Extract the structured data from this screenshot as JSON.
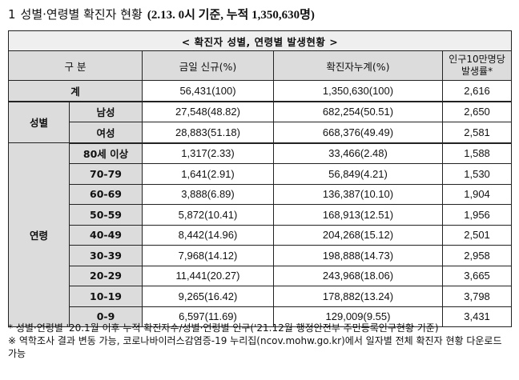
{
  "title": {
    "number": "1",
    "text": "성별·연령별 확진자 현황",
    "date": "(2.13. 0시 기준, 누적 1,350,630명)"
  },
  "table": {
    "caption": "< 확진자 성별, 연령별 발생현황 >",
    "headers": {
      "category": "구 분",
      "new_today": "금일 신규(%)",
      "cumulative": "확진자누계(%)",
      "per100k": "인구10만명당 발생률*"
    },
    "total": {
      "label": "계",
      "new": "56,431(100)",
      "cumulative": "1,350,630(100)",
      "rate": "2,616"
    },
    "sex": {
      "label": "성별",
      "rows": [
        {
          "label": "남성",
          "new": "27,548(48.82)",
          "cumulative": "682,254(50.51)",
          "rate": "2,650"
        },
        {
          "label": "여성",
          "new": "28,883(51.18)",
          "cumulative": "668,376(49.49)",
          "rate": "2,581"
        }
      ]
    },
    "age": {
      "label": "연령",
      "rows": [
        {
          "label": "80세 이상",
          "new": "1,317(2.33)",
          "cumulative": "33,466(2.48)",
          "rate": "1,588"
        },
        {
          "label": "70-79",
          "new": "1,641(2.91)",
          "cumulative": "56,849(4.21)",
          "rate": "1,530"
        },
        {
          "label": "60-69",
          "new": "3,888(6.89)",
          "cumulative": "136,387(10.10)",
          "rate": "1,904"
        },
        {
          "label": "50-59",
          "new": "5,872(10.41)",
          "cumulative": "168,913(12.51)",
          "rate": "1,956"
        },
        {
          "label": "40-49",
          "new": "8,442(14.96)",
          "cumulative": "204,268(15.12)",
          "rate": "2,501"
        },
        {
          "label": "30-39",
          "new": "7,968(14.12)",
          "cumulative": "198,888(14.73)",
          "rate": "2,958"
        },
        {
          "label": "20-29",
          "new": "11,441(20.27)",
          "cumulative": "243,968(18.06)",
          "rate": "3,665"
        },
        {
          "label": "10-19",
          "new": "9,265(16.42)",
          "cumulative": "178,882(13.24)",
          "rate": "3,798"
        },
        {
          "label": "0-9",
          "new": "6,597(11.69)",
          "cumulative": "129,009(9.55)",
          "rate": "3,431"
        }
      ]
    }
  },
  "notes": [
    "* 성별·연령별 '20.1월 이후 누적 확진자수/성별·연령별 인구('21.12월 행정안전부 주민등록인구현황 기준)",
    "※ 역학조사 결과 변동 가능, 코로나바이러스감염증-19 누리집(ncov.mohw.go.kr)에서 일자별 전체 확진자 현황 다운로드 가능"
  ]
}
